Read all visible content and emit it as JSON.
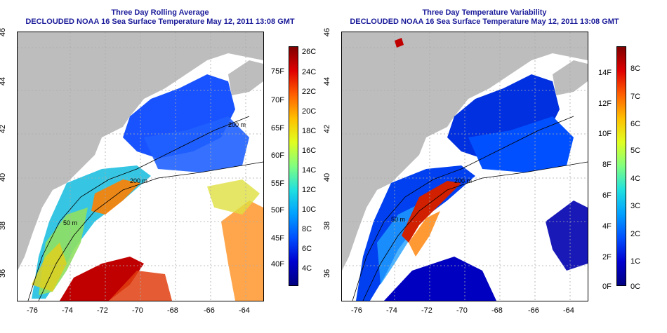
{
  "panels": [
    {
      "title": "Three Day Rolling Average",
      "subtitle": "DECLOUDED NOAA 16 Sea Surface Temperature May 12, 2011 13:08 GMT",
      "x_ticks": [
        "-76",
        "-74",
        "-72",
        "-70",
        "-68",
        "-66",
        "-64"
      ],
      "y_ticks": [
        "46",
        "44",
        "42",
        "40",
        "38",
        "36"
      ],
      "contour_labels": [
        "200 m",
        "200 m",
        "50 m"
      ],
      "colorbar": {
        "colors": [
          "#000080",
          "#0000d0",
          "#0050ff",
          "#00a0ff",
          "#20e0e0",
          "#80ff80",
          "#e0ff20",
          "#ffc000",
          "#ff6000",
          "#e00000",
          "#800000"
        ],
        "left_labels": [
          "75F",
          "70F",
          "65F",
          "60F",
          "55F",
          "50F",
          "45F",
          "40F"
        ],
        "right_labels": [
          "26C",
          "24C",
          "22C",
          "20C",
          "18C",
          "16C",
          "14C",
          "12C",
          "10C",
          "8C",
          "6C",
          "4C"
        ]
      }
    },
    {
      "title": "Three Day Temperature Variability",
      "subtitle": "DECLOUDED NOAA 16 Sea Surface Temperature May 12, 2011 13:08 GMT",
      "x_ticks": [
        "-76",
        "-74",
        "-72",
        "-70",
        "-68",
        "-66",
        "-64"
      ],
      "y_ticks": [
        "46",
        "44",
        "42",
        "40",
        "38",
        "36"
      ],
      "contour_labels": [
        "200 m",
        "50 m"
      ],
      "colorbar": {
        "colors": [
          "#000080",
          "#0000d0",
          "#0050ff",
          "#00a0ff",
          "#20e0e0",
          "#80ff80",
          "#e0ff20",
          "#ffc000",
          "#ff6000",
          "#e00000",
          "#800000"
        ],
        "left_labels": [
          "14F",
          "12F",
          "10F",
          "8F",
          "6F",
          "4F",
          "2F",
          "0F"
        ],
        "right_labels": [
          "8C",
          "7C",
          "6C",
          "5C",
          "4C",
          "3C",
          "2C",
          "1C",
          "0C"
        ]
      }
    }
  ],
  "colors": {
    "title": "#1a1a9a",
    "land": "#bdbdbd",
    "cloud": "#ffffff",
    "grid": "#aaaaaa"
  }
}
